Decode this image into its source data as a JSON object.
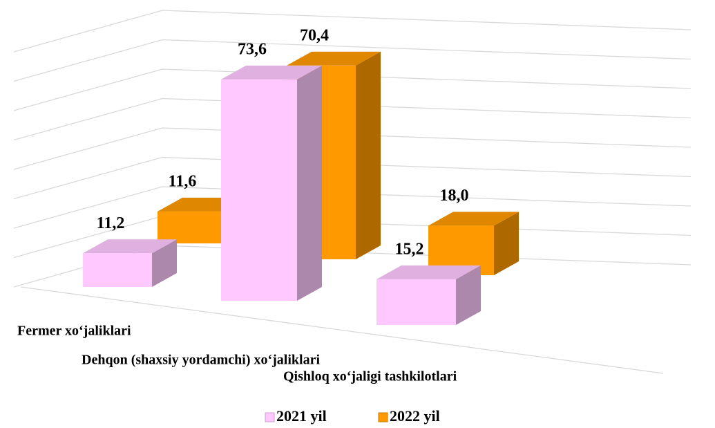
{
  "chart_data": {
    "type": "bar3d",
    "categories": [
      "Fermer xo‘jaliklari",
      "Dehqon (shaxsiy yordamchi) xo‘jaliklari",
      "Qishloq xo‘jaligi tashkilotlari"
    ],
    "series": [
      {
        "name": "2021 yil",
        "color": "#ffc8ff",
        "values": [
          11.2,
          73.6,
          15.2
        ],
        "value_labels": [
          "11,2",
          "73,6",
          "15,2"
        ]
      },
      {
        "name": "2022 yil",
        "color": "#ff9900",
        "values": [
          11.6,
          70.4,
          18.0
        ],
        "value_labels": [
          "11,6",
          "70,4",
          "18,0"
        ]
      }
    ],
    "ylim": [
      0,
      80
    ],
    "yticks": [
      0,
      10,
      20,
      30,
      40,
      50,
      60,
      70,
      80
    ],
    "grid": true,
    "legend": "bottom"
  }
}
